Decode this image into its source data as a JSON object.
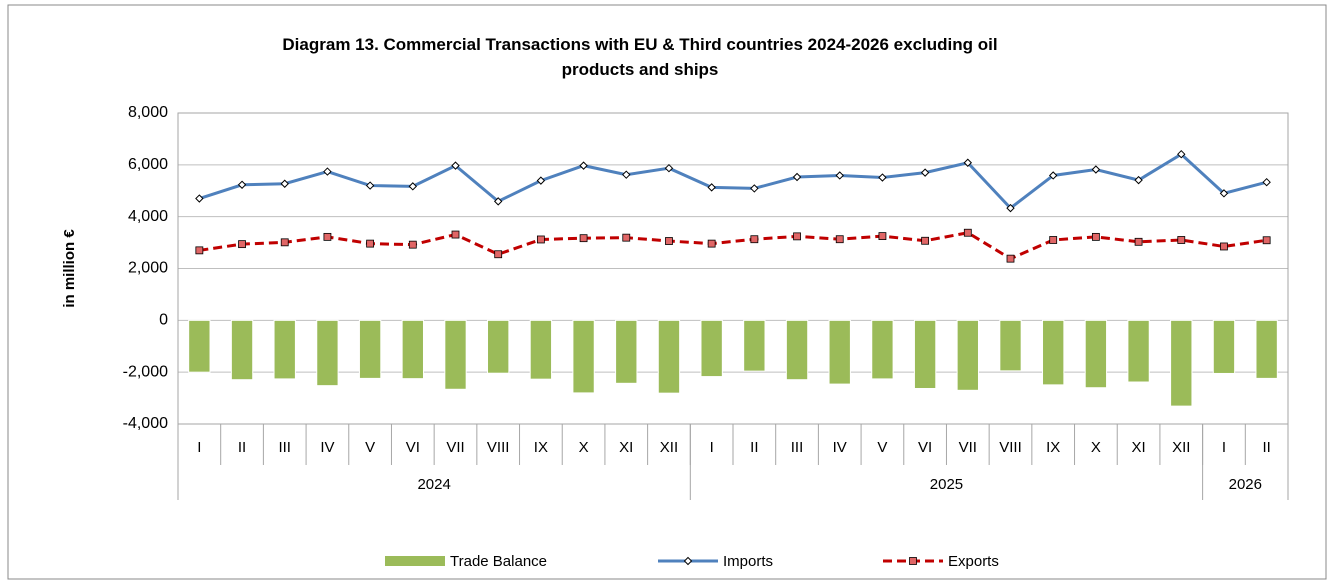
{
  "chart_data": {
    "type": "bar_line",
    "title": "Diagram 13. Commercial Transactions with EU & Third countries 2024-2026  excluding oil products and ships",
    "y_label": "in million  €",
    "categories": [
      "I",
      "II",
      "III",
      "IV",
      "V",
      "VI",
      "VII",
      "VIII",
      "IX",
      "X",
      "XI",
      "XII",
      "I",
      "II",
      "III",
      "IV",
      "V",
      "VI",
      "VII",
      "VIII",
      "IX",
      "X",
      "XI",
      "XII",
      "I",
      "II"
    ],
    "category_groups": [
      {
        "label": "2024",
        "size": 12
      },
      {
        "label": "2025",
        "size": 12
      },
      {
        "label": "2026",
        "size": 2
      }
    ],
    "series": [
      {
        "name": "Trade Balance",
        "kind": "bar",
        "color": "#9bbb59",
        "values": [
          -2000,
          -2290,
          -2260,
          -2520,
          -2240,
          -2250,
          -2660,
          -2040,
          -2270,
          -2800,
          -2430,
          -2810,
          -2170,
          -1960,
          -2290,
          -2460,
          -2260,
          -2630,
          -2700,
          -1950,
          -2490,
          -2600,
          -2380,
          -3310,
          -2050,
          -2240
        ]
      },
      {
        "name": "Imports",
        "kind": "line",
        "color": "#4f81bd",
        "marker": "diamond",
        "values": [
          4700,
          5230,
          5270,
          5740,
          5200,
          5170,
          5970,
          4590,
          5390,
          5970,
          5620,
          5870,
          5130,
          5090,
          5530,
          5590,
          5510,
          5700,
          6080,
          4330,
          5590,
          5820,
          5410,
          6410,
          4900,
          5330
        ]
      },
      {
        "name": "Exports",
        "kind": "line",
        "color": "#c00000",
        "marker": "square",
        "dashed": true,
        "values": [
          2700,
          2940,
          3010,
          3220,
          2960,
          2920,
          3310,
          2550,
          3120,
          3170,
          3190,
          3060,
          2960,
          3130,
          3240,
          3130,
          3250,
          3070,
          3380,
          2380,
          3100,
          3220,
          3030,
          3100,
          2850,
          3090
        ]
      }
    ],
    "ylim": [
      -4000,
      8000
    ],
    "yticks": [
      {
        "value": -4000,
        "label": "-4,000"
      },
      {
        "value": -2000,
        "label": "-2,000"
      },
      0,
      {
        "value": 2000,
        "label": "2,000"
      },
      {
        "value": 4000,
        "label": "4,000"
      },
      {
        "value": 6000,
        "label": "6,000"
      },
      {
        "value": 8000,
        "label": "8,000"
      }
    ],
    "grid": true,
    "legend": "bottom"
  }
}
